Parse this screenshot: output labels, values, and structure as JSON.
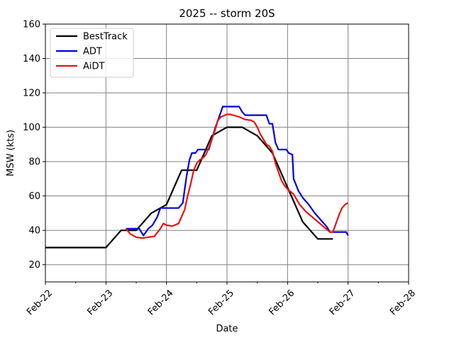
{
  "chart_data": {
    "type": "line",
    "title": "2025 -- storm 20S",
    "xlabel": "Date",
    "ylabel": "MSW (kts)",
    "xlim": [
      0,
      6
    ],
    "ylim": [
      10,
      160
    ],
    "xticks": [
      {
        "x": 0,
        "label": "Feb-22"
      },
      {
        "x": 1,
        "label": "Feb-23"
      },
      {
        "x": 2,
        "label": "Feb-24"
      },
      {
        "x": 3,
        "label": "Feb-25"
      },
      {
        "x": 4,
        "label": "Feb-26"
      },
      {
        "x": 5,
        "label": "Feb-27"
      },
      {
        "x": 6,
        "label": "Feb-28"
      }
    ],
    "x_minor_ticks": [
      0.5,
      1.5,
      2.5,
      3.5,
      4.5,
      5.5
    ],
    "yticks": [
      20,
      40,
      60,
      80,
      100,
      120,
      140,
      160
    ],
    "grid": true,
    "legend_position": "upper-left",
    "series": [
      {
        "name": "BestTrack",
        "color": "#000000",
        "points": [
          [
            0,
            30
          ],
          [
            1,
            30
          ],
          [
            1.25,
            40
          ],
          [
            1.5,
            40
          ],
          [
            1.75,
            50
          ],
          [
            2,
            55
          ],
          [
            2.25,
            75
          ],
          [
            2.5,
            75
          ],
          [
            2.75,
            95
          ],
          [
            3,
            100
          ],
          [
            3.25,
            100
          ],
          [
            3.5,
            95
          ],
          [
            3.75,
            85
          ],
          [
            4,
            65
          ],
          [
            4.25,
            45
          ],
          [
            4.5,
            35
          ],
          [
            4.75,
            35
          ]
        ]
      },
      {
        "name": "ADT",
        "color": "#0000dd",
        "points": [
          [
            1.33,
            41
          ],
          [
            1.55,
            41
          ],
          [
            1.62,
            37
          ],
          [
            1.7,
            41
          ],
          [
            1.77,
            43
          ],
          [
            1.85,
            48
          ],
          [
            1.9,
            53
          ],
          [
            2.2,
            53
          ],
          [
            2.27,
            56
          ],
          [
            2.33,
            71
          ],
          [
            2.38,
            81
          ],
          [
            2.42,
            85
          ],
          [
            2.48,
            85
          ],
          [
            2.52,
            87
          ],
          [
            2.7,
            87
          ],
          [
            2.8,
            99
          ],
          [
            2.88,
            107
          ],
          [
            2.93,
            112
          ],
          [
            3.2,
            112
          ],
          [
            3.25,
            109
          ],
          [
            3.3,
            107
          ],
          [
            3.65,
            107
          ],
          [
            3.7,
            102
          ],
          [
            3.75,
            102
          ],
          [
            3.8,
            91
          ],
          [
            3.85,
            87
          ],
          [
            3.98,
            87
          ],
          [
            4.02,
            85
          ],
          [
            4.08,
            84
          ],
          [
            4.1,
            70
          ],
          [
            4.18,
            63
          ],
          [
            4.25,
            59
          ],
          [
            4.35,
            55
          ],
          [
            4.45,
            50
          ],
          [
            4.55,
            46
          ],
          [
            4.65,
            42
          ],
          [
            4.7,
            39
          ],
          [
            4.97,
            39
          ],
          [
            5,
            37
          ]
        ]
      },
      {
        "name": "AiDT",
        "color": "#ee1111",
        "points": [
          [
            1.33,
            41
          ],
          [
            1.4,
            38
          ],
          [
            1.5,
            36
          ],
          [
            1.6,
            35.5
          ],
          [
            1.7,
            36
          ],
          [
            1.8,
            36.5
          ],
          [
            1.9,
            41
          ],
          [
            1.95,
            44
          ],
          [
            2,
            43
          ],
          [
            2.1,
            42.5
          ],
          [
            2.2,
            44
          ],
          [
            2.25,
            48
          ],
          [
            2.3,
            52
          ],
          [
            2.35,
            60
          ],
          [
            2.4,
            67
          ],
          [
            2.45,
            75
          ],
          [
            2.5,
            79
          ],
          [
            2.55,
            81
          ],
          [
            2.6,
            82
          ],
          [
            2.65,
            84
          ],
          [
            2.7,
            88
          ],
          [
            2.75,
            93
          ],
          [
            2.8,
            98
          ],
          [
            2.85,
            104
          ],
          [
            2.9,
            106
          ],
          [
            3,
            107.5
          ],
          [
            3.05,
            107.5
          ],
          [
            3.1,
            107
          ],
          [
            3.2,
            106
          ],
          [
            3.3,
            104.5
          ],
          [
            3.4,
            104
          ],
          [
            3.45,
            103
          ],
          [
            3.5,
            100
          ],
          [
            3.55,
            96
          ],
          [
            3.6,
            93
          ],
          [
            3.65,
            90
          ],
          [
            3.7,
            89
          ],
          [
            3.75,
            86
          ],
          [
            3.8,
            79
          ],
          [
            3.85,
            74
          ],
          [
            3.9,
            69
          ],
          [
            3.95,
            66
          ],
          [
            4,
            64
          ],
          [
            4.05,
            62.5
          ],
          [
            4.1,
            61
          ],
          [
            4.15,
            58
          ],
          [
            4.2,
            55
          ],
          [
            4.3,
            51
          ],
          [
            4.4,
            48
          ],
          [
            4.5,
            45
          ],
          [
            4.6,
            42
          ],
          [
            4.7,
            39
          ],
          [
            4.75,
            39
          ],
          [
            4.8,
            44
          ],
          [
            4.85,
            49
          ],
          [
            4.9,
            53
          ],
          [
            4.95,
            55
          ],
          [
            5,
            56
          ]
        ]
      }
    ]
  }
}
